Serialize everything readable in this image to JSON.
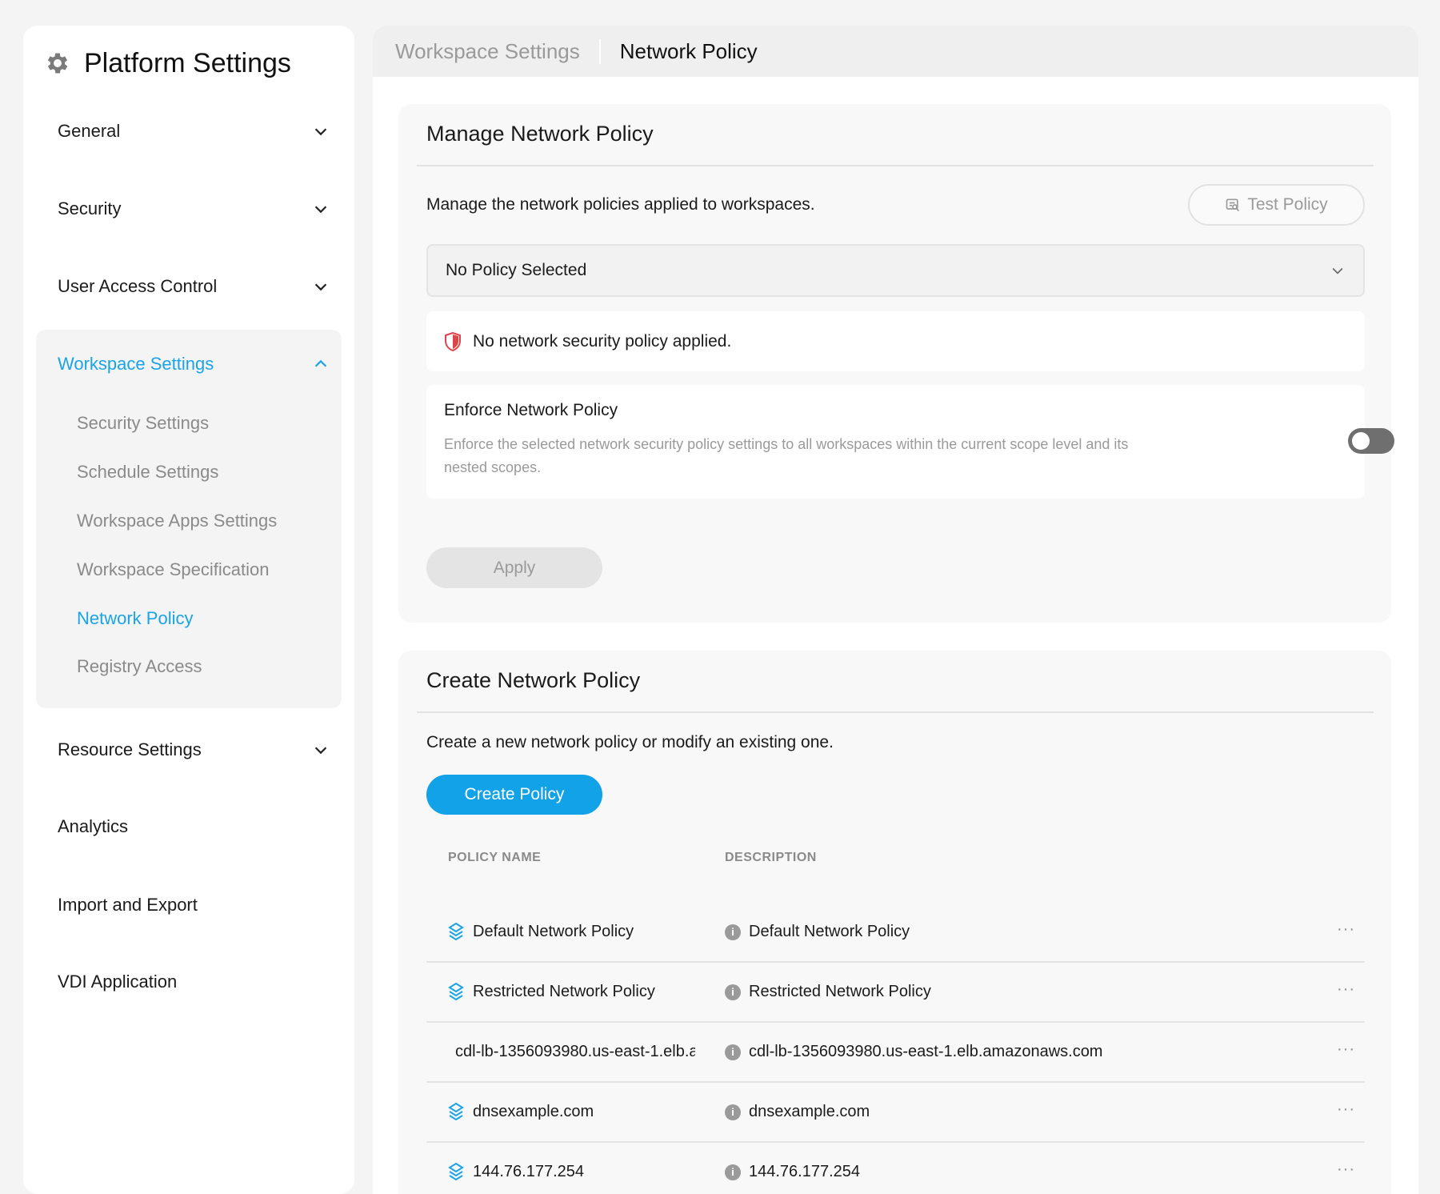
{
  "sidebar": {
    "title": "Platform Settings",
    "icon": "gear-icon",
    "items": [
      {
        "label": "General",
        "expanded": false
      },
      {
        "label": "Security",
        "expanded": false
      },
      {
        "label": "User Access Control",
        "expanded": false
      },
      {
        "label": "Workspace Settings",
        "expanded": true
      },
      {
        "label": "Resource Settings",
        "expanded": false
      },
      {
        "label": "Analytics"
      },
      {
        "label": "Import and Export"
      },
      {
        "label": "VDI Application"
      }
    ],
    "sub_items": [
      "Security Settings",
      "Schedule Settings",
      "Workspace Apps Settings",
      "Workspace Specification",
      "Network Policy",
      "Registry Access"
    ],
    "active_sub": "Network Policy"
  },
  "breadcrumb": {
    "parent": "Workspace Settings",
    "current": "Network Policy"
  },
  "manage": {
    "title": "Manage Network Policy",
    "description": "Manage the network policies applied to workspaces.",
    "test_button": "Test Policy",
    "select_value": "No Policy Selected",
    "alert": "No network security policy applied.",
    "enforce_title": "Enforce Network Policy",
    "enforce_desc": "Enforce the selected network security policy settings to all workspaces within the current scope level and its nested scopes.",
    "enforce_enabled": false,
    "apply_button": "Apply"
  },
  "create": {
    "title": "Create Network Policy",
    "description": "Create a new network policy or modify an existing one.",
    "create_button": "Create Policy",
    "columns": [
      "POLICY NAME",
      "DESCRIPTION"
    ],
    "rows": [
      {
        "name": "Default Network Policy",
        "description": "Default Network Policy"
      },
      {
        "name": "Restricted Network Policy",
        "description": "Restricted Network Policy"
      },
      {
        "name": "cdl-lb-1356093980.us-east-1.elb.a",
        "description": "cdl-lb-1356093980.us-east-1.elb.amazonaws.com"
      },
      {
        "name": "dnsexample.com",
        "description": "dnsexample.com"
      },
      {
        "name": "144.76.177.254",
        "description": "144.76.177.254"
      }
    ],
    "row_menu": "···"
  },
  "colors": {
    "accent": "#1aa3e8",
    "alert_icon": "#e0444a"
  }
}
